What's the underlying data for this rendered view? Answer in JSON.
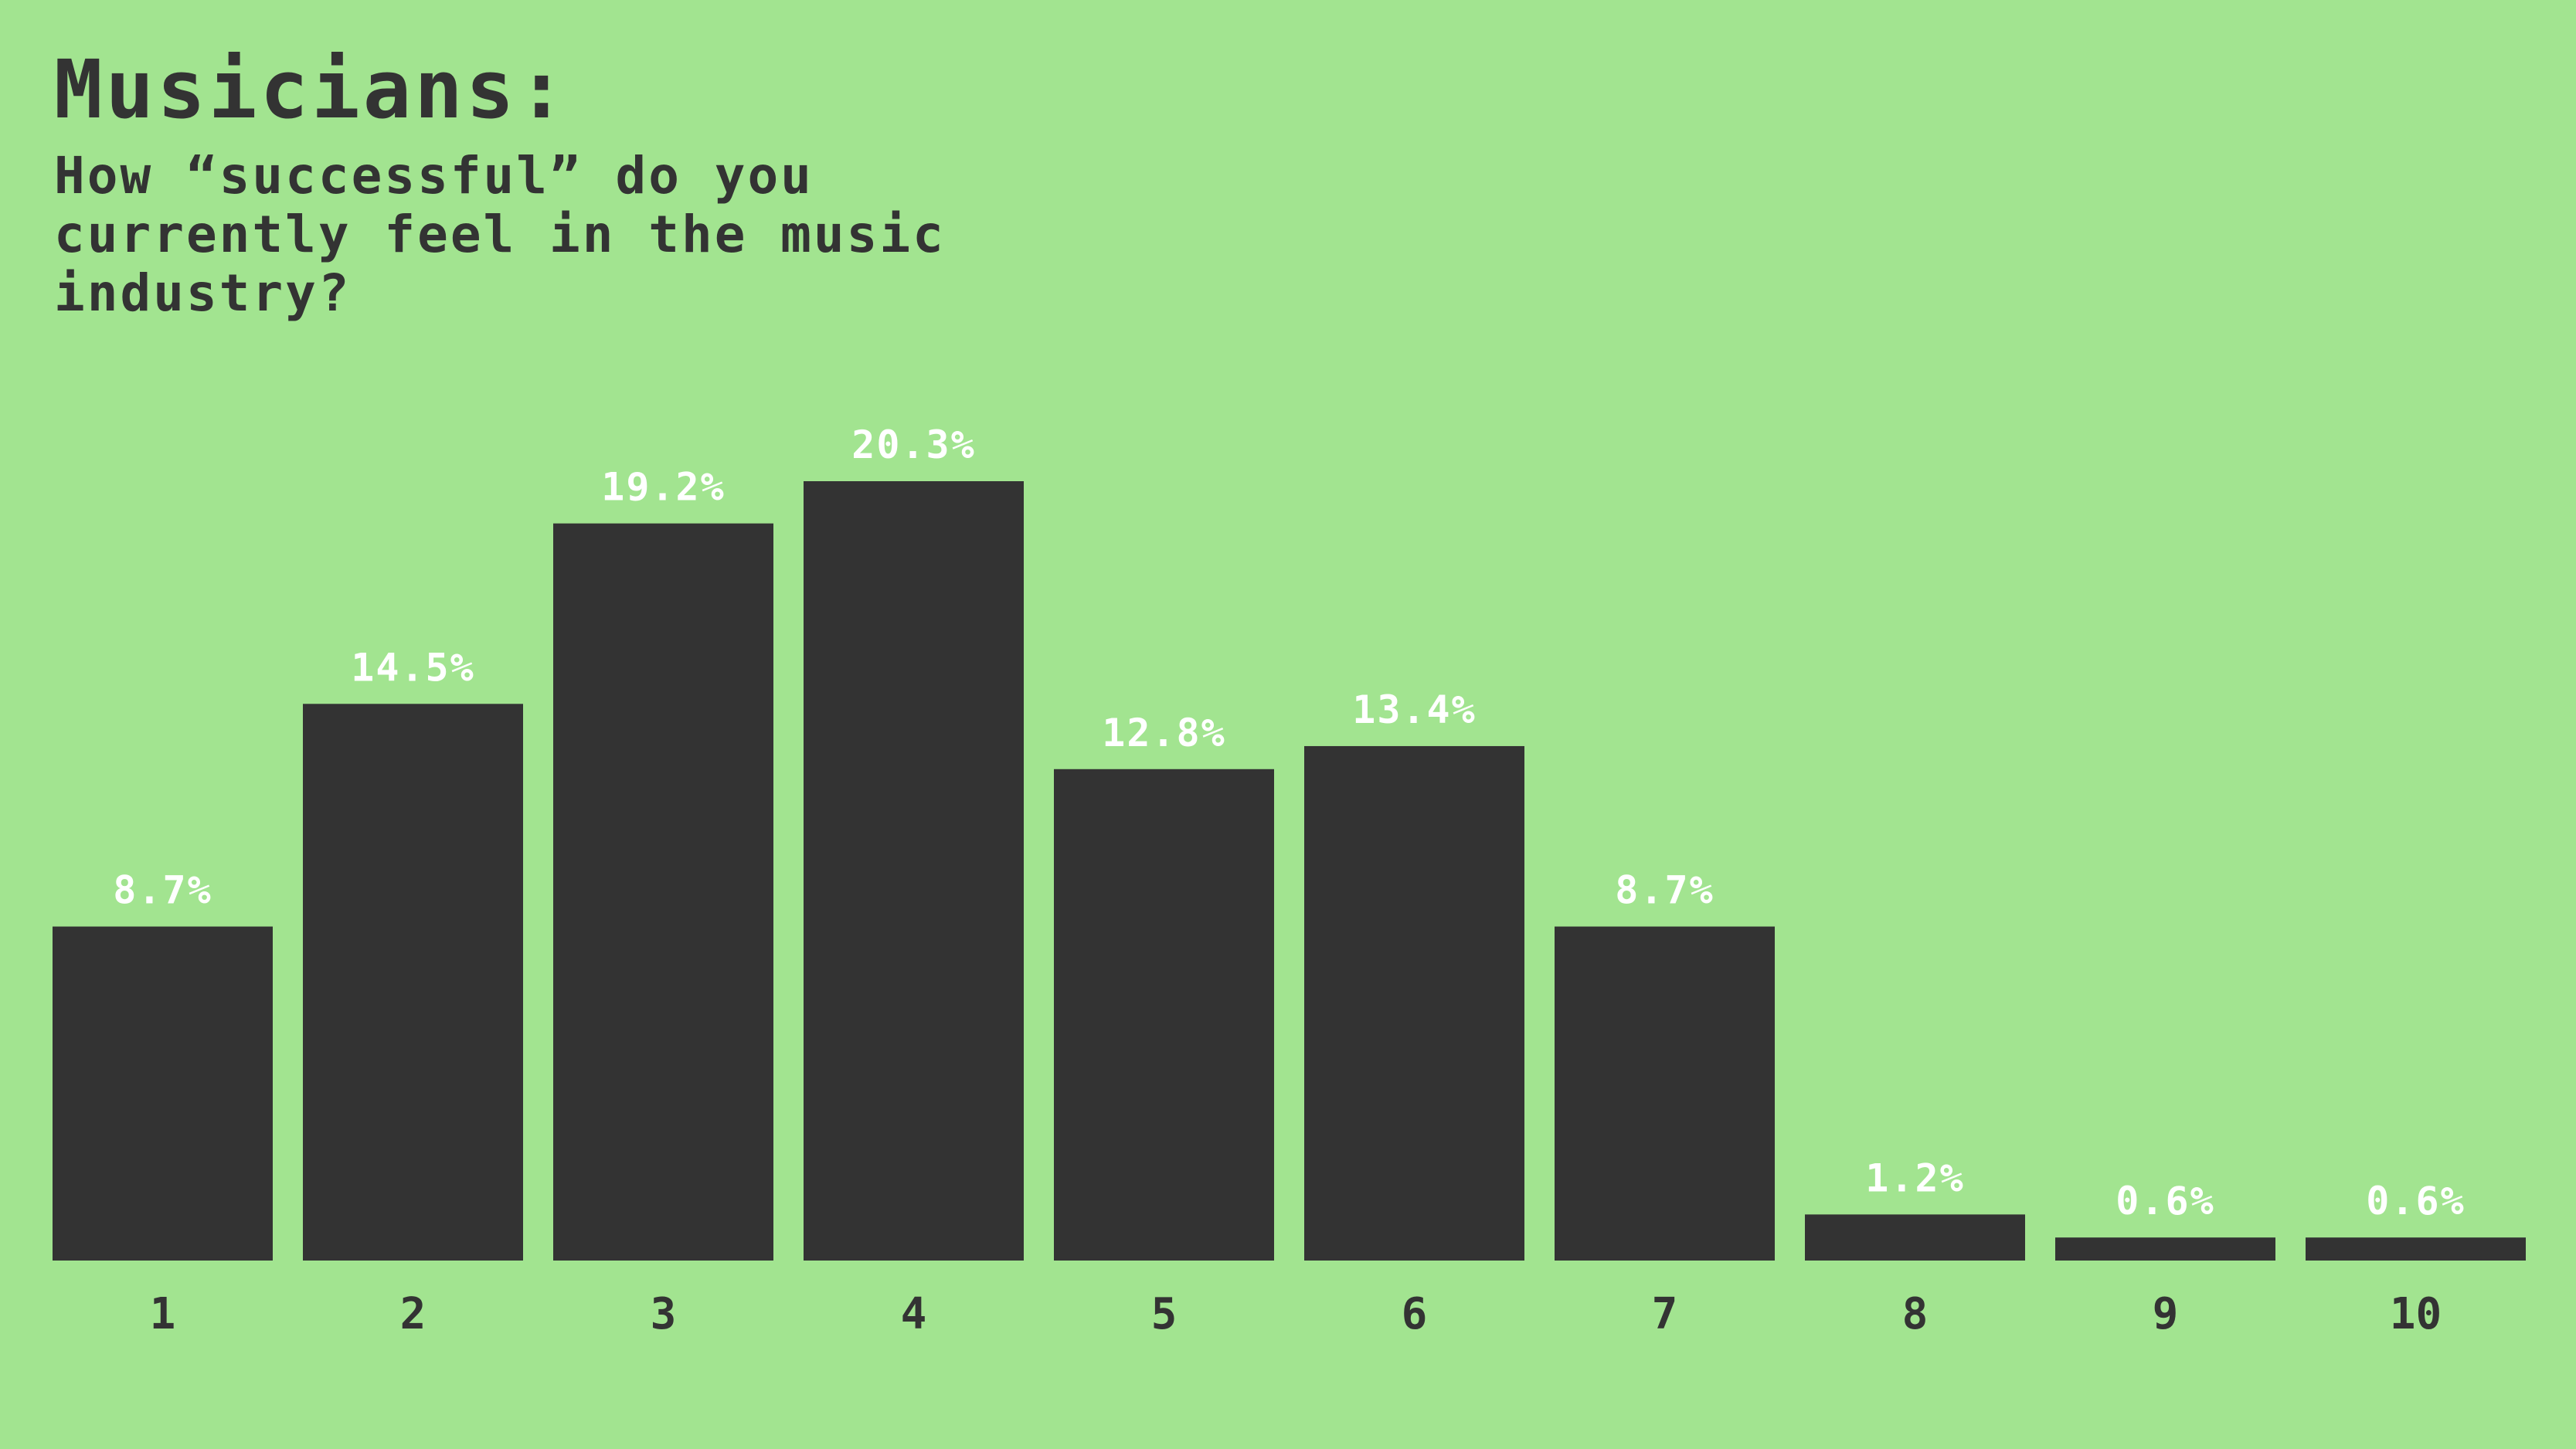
{
  "page": {
    "background": "#a2e490",
    "bar_color": "#333333",
    "label_color": "#ffffff"
  },
  "chart_data": {
    "type": "bar",
    "title": "Musicians:",
    "subtitle": "How “successful” do you currently feel in the music industry?",
    "categories": [
      "1",
      "2",
      "3",
      "4",
      "5",
      "6",
      "7",
      "8",
      "9",
      "10"
    ],
    "values": [
      8.7,
      14.5,
      19.2,
      20.3,
      12.8,
      13.4,
      8.7,
      1.2,
      0.6,
      0.6
    ],
    "value_labels": [
      "8.7%",
      "14.5%",
      "19.2%",
      "20.3%",
      "12.8%",
      "13.4%",
      "8.7%",
      "1.2%",
      "0.6%",
      "0.6%"
    ],
    "xlabel": "",
    "ylabel": "",
    "ylim": [
      0,
      20.3
    ],
    "grid": false,
    "legend": "none"
  }
}
